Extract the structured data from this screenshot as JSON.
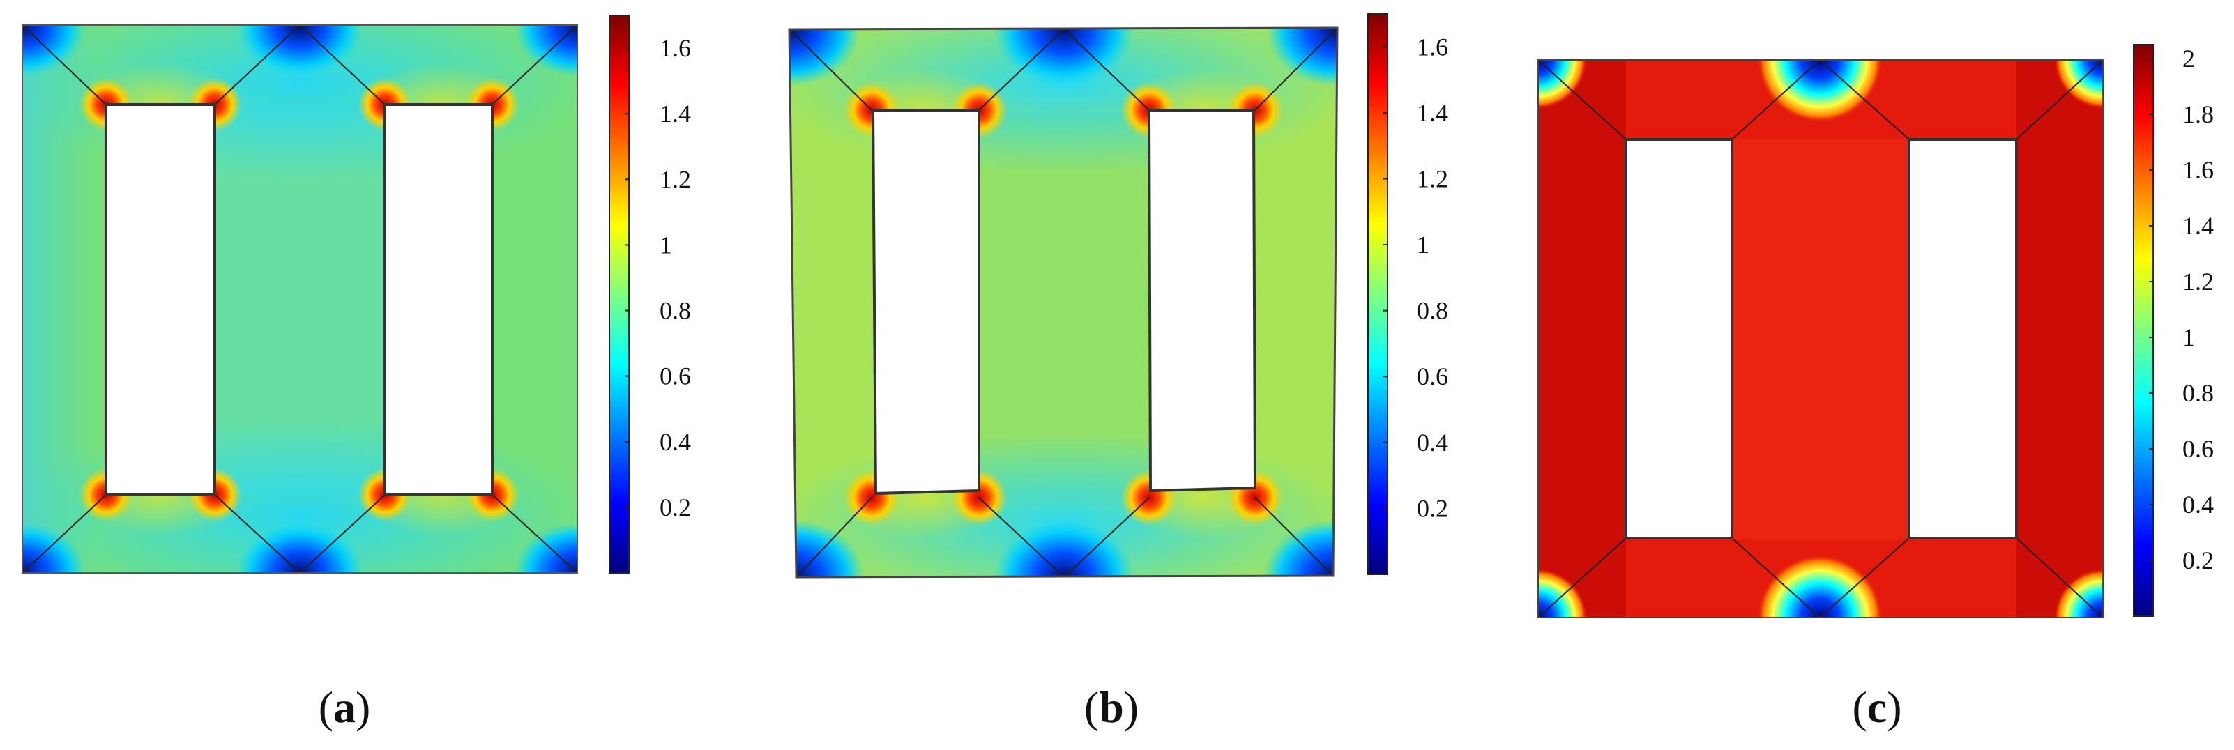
{
  "panels": [
    {
      "id": "a",
      "caption": {
        "open": "(",
        "letter": "a",
        "close": ")"
      },
      "colorbar": {
        "ticks": [
          "0.2",
          "0.4",
          "0.6",
          "0.8",
          "1",
          "1.2",
          "1.4",
          "1.6"
        ]
      },
      "field": {
        "body": "#78e07a",
        "center": "#63dfb0",
        "corners": "#0a3dd8",
        "openings": "#d8161e"
      }
    },
    {
      "id": "b",
      "caption": {
        "open": "(",
        "letter": "b",
        "close": ")"
      },
      "colorbar": {
        "ticks": [
          "0.2",
          "0.4",
          "0.6",
          "0.8",
          "1",
          "1.2",
          "1.4",
          "1.6"
        ]
      },
      "field": {
        "body": "#a8e458",
        "center": "#8ee06c",
        "corners": "#0a3dd8",
        "openings": "#d8161e"
      }
    },
    {
      "id": "c",
      "caption": {
        "open": "(",
        "letter": "c",
        "close": ")"
      },
      "colorbar": {
        "ticks": [
          "0.2",
          "0.4",
          "0.6",
          "0.8",
          "1",
          "1.2",
          "1.4",
          "1.6",
          "1.8",
          "2"
        ]
      },
      "field": {
        "body": "#e41a0c",
        "center": "#ea2410",
        "corners": "#0a3dd8",
        "openings": "#c00808"
      }
    }
  ],
  "colormap": [
    "#00007f",
    "#0000ff",
    "#007fff",
    "#00ffff",
    "#7fff7f",
    "#ffff00",
    "#ff7f00",
    "#ff0000",
    "#7f0000"
  ]
}
